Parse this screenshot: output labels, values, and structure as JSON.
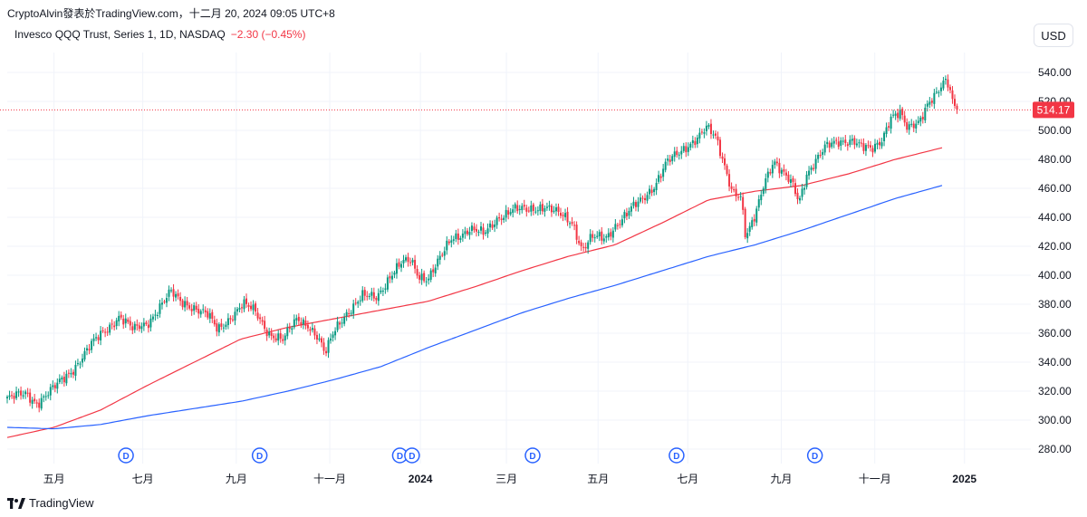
{
  "header": {
    "attribution": "CryptoAlvin發表於TradingView.com，十二月 20, 2024 09:05 UTC+8",
    "symbol_info": "Invesco QQQ Trust, Series 1, 1D, NASDAQ",
    "change": "−2.30 (−0.45%)",
    "currency": "USD"
  },
  "footer": {
    "brand": "TradingView"
  },
  "chart_data": {
    "type": "candlestick",
    "title": "Invesco QQQ Trust, Series 1, 1D, NASDAQ",
    "last_price": 514.17,
    "last_price_label": "514.17",
    "ylim": [
      270,
      550
    ],
    "y_ticks": [
      "280.00",
      "300.00",
      "320.00",
      "340.00",
      "360.00",
      "380.00",
      "400.00",
      "420.00",
      "440.00",
      "460.00",
      "480.00",
      "500.00",
      "520.00",
      "540.00"
    ],
    "x_ticks": [
      {
        "label": "五月",
        "t": 0.05,
        "bold": false
      },
      {
        "label": "七月",
        "t": 0.145,
        "bold": false
      },
      {
        "label": "九月",
        "t": 0.245,
        "bold": false
      },
      {
        "label": "十一月",
        "t": 0.345,
        "bold": false
      },
      {
        "label": "2024",
        "t": 0.442,
        "bold": true
      },
      {
        "label": "三月",
        "t": 0.534,
        "bold": false
      },
      {
        "label": "五月",
        "t": 0.632,
        "bold": false
      },
      {
        "label": "七月",
        "t": 0.728,
        "bold": false
      },
      {
        "label": "九月",
        "t": 0.828,
        "bold": false
      },
      {
        "label": "十一月",
        "t": 0.928,
        "bold": false
      },
      {
        "label": "2025",
        "t": 1.024,
        "bold": true
      }
    ],
    "dividend_marker_label": "D",
    "dividend_t": [
      0.127,
      0.27,
      0.42,
      0.433,
      0.562,
      0.716,
      0.864
    ],
    "price_path": [
      [
        0.0,
        315
      ],
      [
        0.02,
        318
      ],
      [
        0.032,
        312
      ],
      [
        0.05,
        322
      ],
      [
        0.07,
        335
      ],
      [
        0.09,
        352
      ],
      [
        0.105,
        362
      ],
      [
        0.12,
        372
      ],
      [
        0.135,
        362
      ],
      [
        0.15,
        367
      ],
      [
        0.165,
        380
      ],
      [
        0.175,
        388
      ],
      [
        0.185,
        382
      ],
      [
        0.2,
        378
      ],
      [
        0.215,
        372
      ],
      [
        0.225,
        362
      ],
      [
        0.24,
        372
      ],
      [
        0.252,
        380
      ],
      [
        0.265,
        375
      ],
      [
        0.28,
        360
      ],
      [
        0.295,
        355
      ],
      [
        0.31,
        370
      ],
      [
        0.322,
        366
      ],
      [
        0.333,
        356
      ],
      [
        0.34,
        345
      ],
      [
        0.35,
        362
      ],
      [
        0.36,
        372
      ],
      [
        0.38,
        385
      ],
      [
        0.395,
        385
      ],
      [
        0.41,
        400
      ],
      [
        0.422,
        408
      ],
      [
        0.432,
        410
      ],
      [
        0.44,
        400
      ],
      [
        0.45,
        398
      ],
      [
        0.462,
        410
      ],
      [
        0.475,
        425
      ],
      [
        0.495,
        432
      ],
      [
        0.51,
        428
      ],
      [
        0.525,
        440
      ],
      [
        0.54,
        445
      ],
      [
        0.555,
        445
      ],
      [
        0.575,
        448
      ],
      [
        0.59,
        442
      ],
      [
        0.605,
        436
      ],
      [
        0.615,
        418
      ],
      [
        0.625,
        426
      ],
      [
        0.64,
        425
      ],
      [
        0.652,
        436
      ],
      [
        0.668,
        446
      ],
      [
        0.68,
        452
      ],
      [
        0.692,
        462
      ],
      [
        0.705,
        478
      ],
      [
        0.72,
        484
      ],
      [
        0.735,
        494
      ],
      [
        0.748,
        502
      ],
      [
        0.758,
        494
      ],
      [
        0.765,
        480
      ],
      [
        0.775,
        460
      ],
      [
        0.785,
        454
      ],
      [
        0.79,
        425
      ],
      [
        0.8,
        440
      ],
      [
        0.81,
        465
      ],
      [
        0.82,
        480
      ],
      [
        0.83,
        470
      ],
      [
        0.84,
        462
      ],
      [
        0.847,
        450
      ],
      [
        0.855,
        470
      ],
      [
        0.865,
        480
      ],
      [
        0.875,
        488
      ],
      [
        0.89,
        492
      ],
      [
        0.905,
        494
      ],
      [
        0.915,
        488
      ],
      [
        0.925,
        486
      ],
      [
        0.935,
        493
      ],
      [
        0.945,
        510
      ],
      [
        0.955,
        512
      ],
      [
        0.963,
        500
      ],
      [
        0.975,
        506
      ],
      [
        0.985,
        520
      ],
      [
        0.995,
        526
      ],
      [
        1.005,
        534
      ],
      [
        1.012,
        518
      ],
      [
        1.016,
        514.17
      ]
    ],
    "series": [
      {
        "name": "MA (red)",
        "color": "#f23645",
        "values": [
          [
            0.0,
            288
          ],
          [
            0.05,
            295
          ],
          [
            0.1,
            307
          ],
          [
            0.15,
            324
          ],
          [
            0.2,
            340
          ],
          [
            0.25,
            356
          ],
          [
            0.3,
            364
          ],
          [
            0.35,
            370
          ],
          [
            0.4,
            376
          ],
          [
            0.45,
            382
          ],
          [
            0.5,
            392
          ],
          [
            0.55,
            403
          ],
          [
            0.6,
            413
          ],
          [
            0.65,
            421
          ],
          [
            0.7,
            436
          ],
          [
            0.75,
            452
          ],
          [
            0.8,
            458
          ],
          [
            0.85,
            462
          ],
          [
            0.9,
            470
          ],
          [
            0.95,
            480
          ],
          [
            1.0,
            488
          ]
        ]
      },
      {
        "name": "MA (blue)",
        "color": "#2962ff",
        "values": [
          [
            0.0,
            295
          ],
          [
            0.05,
            294
          ],
          [
            0.1,
            297
          ],
          [
            0.15,
            303
          ],
          [
            0.2,
            308
          ],
          [
            0.25,
            313
          ],
          [
            0.3,
            320
          ],
          [
            0.35,
            328
          ],
          [
            0.4,
            337
          ],
          [
            0.45,
            350
          ],
          [
            0.5,
            362
          ],
          [
            0.55,
            374
          ],
          [
            0.6,
            384
          ],
          [
            0.65,
            393
          ],
          [
            0.7,
            403
          ],
          [
            0.75,
            413
          ],
          [
            0.8,
            421
          ],
          [
            0.85,
            431
          ],
          [
            0.9,
            442
          ],
          [
            0.95,
            453
          ],
          [
            1.0,
            462
          ]
        ]
      }
    ]
  }
}
